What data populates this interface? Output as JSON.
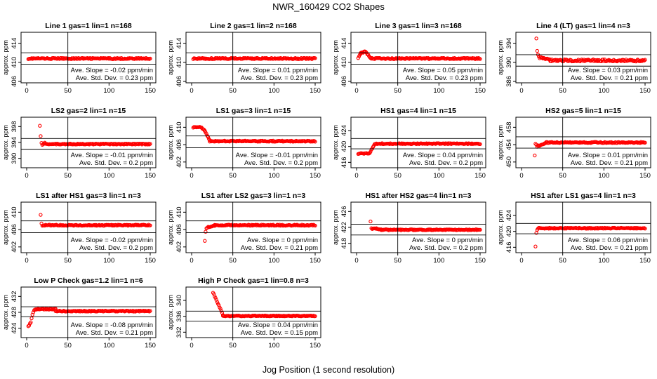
{
  "figure": {
    "title": "NWR_160429  CO2 Shapes",
    "xlabel": "Jog Position (1 second resolution)",
    "ylabel": "approx. ppm",
    "marker_color": "#ff0000"
  },
  "chart_data": [
    {
      "type": "scatter",
      "title": "Line 1 gas=1 lin=1 n=168",
      "xlim": [
        0,
        150
      ],
      "xticks": [
        0,
        50,
        100,
        150
      ],
      "ylim": [
        406,
        416
      ],
      "yticks": [
        406,
        410,
        414
      ],
      "hlines": [
        409.6,
        412.0
      ],
      "vline": 50,
      "slope": "Ave. Slope = -0.02  ppm/min",
      "stddev": "Ave. Std. Dev. = 0.23  ppm",
      "series": [
        {
          "x_start": 2,
          "x_end": 150,
          "segments": [
            {
              "x0": 2,
              "x1": 150,
              "y0": 410.8,
              "y1": 410.8,
              "noise": 0.12
            }
          ]
        }
      ]
    },
    {
      "type": "scatter",
      "title": "Line 2 gas=1 lin=2 n=168",
      "xlim": [
        0,
        150
      ],
      "xticks": [
        0,
        50,
        100,
        150
      ],
      "ylim": [
        406,
        416
      ],
      "yticks": [
        406,
        410,
        414
      ],
      "hlines": [
        409.6,
        412.0
      ],
      "vline": 50,
      "slope": "Ave. Slope = 0.01  ppm/min",
      "stddev": "Ave. Std. Dev. = 0.23  ppm",
      "series": [
        {
          "x_start": 2,
          "x_end": 150,
          "segments": [
            {
              "x0": 2,
              "x1": 150,
              "y0": 410.8,
              "y1": 410.8,
              "noise": 0.12
            }
          ]
        }
      ]
    },
    {
      "type": "scatter",
      "title": "Line 3 gas=1 lin=3 n=168",
      "xlim": [
        0,
        150
      ],
      "xticks": [
        0,
        50,
        100,
        150
      ],
      "ylim": [
        406,
        416
      ],
      "yticks": [
        406,
        410,
        414
      ],
      "hlines": [
        409.6,
        412.0
      ],
      "vline": 50,
      "slope": "Ave. Slope = 0.05  ppm/min",
      "stddev": "Ave. Std. Dev. = 0.23  ppm",
      "series": [
        {
          "x_start": 2,
          "x_end": 150,
          "segments": [
            {
              "x0": 2,
              "x1": 5,
              "y0": 411.0,
              "y1": 411.8,
              "noise": 0.1
            },
            {
              "x0": 5,
              "x1": 11,
              "y0": 411.9,
              "y1": 412.3,
              "noise": 0.1
            },
            {
              "x0": 11,
              "x1": 17,
              "y0": 412.2,
              "y1": 410.9,
              "noise": 0.1
            },
            {
              "x0": 17,
              "x1": 150,
              "y0": 410.8,
              "y1": 410.8,
              "noise": 0.12
            }
          ]
        }
      ]
    },
    {
      "type": "scatter",
      "title": "Line 4 (LT) gas=1 lin=4 n=3",
      "xlim": [
        0,
        150
      ],
      "xticks": [
        0,
        50,
        100,
        150
      ],
      "ylim": [
        386,
        396
      ],
      "yticks": [
        386,
        390,
        394
      ],
      "hlines": [
        389.2,
        391.6
      ],
      "vline": 50,
      "slope": "Ave. Slope = 0.03  ppm/min",
      "stddev": "Ave. Std. Dev. = 0.21  ppm",
      "series": [
        {
          "points": [
            [
              18,
              395.0
            ],
            [
              19,
              392.4
            ],
            [
              20,
              391.6
            ],
            [
              21,
              391.2
            ]
          ],
          "x_start": 22,
          "x_end": 150,
          "segments": [
            {
              "x0": 22,
              "x1": 35,
              "y0": 391.0,
              "y1": 390.5,
              "noise": 0.15
            },
            {
              "x0": 35,
              "x1": 150,
              "y0": 390.4,
              "y1": 390.4,
              "noise": 0.22
            }
          ]
        }
      ]
    },
    {
      "type": "scatter",
      "title": "LS2 gas=2 lin=1 n=15",
      "xlim": [
        0,
        150
      ],
      "xticks": [
        0,
        50,
        100,
        150
      ],
      "ylim": [
        388,
        400
      ],
      "yticks": [
        390,
        394,
        398
      ],
      "hlines": [
        392.3,
        395.0
      ],
      "vline": 50,
      "slope": "Ave. Slope = -0.01  ppm/min",
      "stddev": "Ave. Std. Dev. = 0.2  ppm",
      "series": [
        {
          "points": [
            [
              16,
              398.2
            ],
            [
              17,
              395.6
            ],
            [
              18,
              393.9
            ]
          ],
          "x_start": 19,
          "x_end": 150,
          "segments": [
            {
              "x0": 19,
              "x1": 22,
              "y0": 393.5,
              "y1": 393.9,
              "noise": 0.1
            },
            {
              "x0": 22,
              "x1": 150,
              "y0": 393.6,
              "y1": 393.6,
              "noise": 0.12
            }
          ]
        }
      ]
    },
    {
      "type": "scatter",
      "title": "LS1 gas=3 lin=1 n=15",
      "xlim": [
        0,
        150
      ],
      "xticks": [
        0,
        50,
        100,
        150
      ],
      "ylim": [
        401,
        412
      ],
      "yticks": [
        402,
        406,
        410
      ],
      "hlines": [
        405.3,
        408.0
      ],
      "vline": 50,
      "slope": "Ave. Slope = -0.01  ppm/min",
      "stddev": "Ave. Std. Dev. = 0.2  ppm",
      "series": [
        {
          "x_start": 2,
          "x_end": 150,
          "segments": [
            {
              "x0": 2,
              "x1": 12,
              "y0": 410.0,
              "y1": 410.0,
              "noise": 0.1
            },
            {
              "x0": 12,
              "x1": 16,
              "y0": 409.9,
              "y1": 409.3,
              "noise": 0.1
            },
            {
              "x0": 16,
              "x1": 22,
              "y0": 409.2,
              "y1": 407.0,
              "noise": 0.1
            },
            {
              "x0": 22,
              "x1": 150,
              "y0": 406.8,
              "y1": 406.8,
              "noise": 0.12
            }
          ]
        }
      ]
    },
    {
      "type": "scatter",
      "title": "HS1 gas=4 lin=1 n=15",
      "xlim": [
        0,
        150
      ],
      "xticks": [
        0,
        50,
        100,
        150
      ],
      "ylim": [
        415,
        427
      ],
      "yticks": [
        416,
        420,
        424
      ],
      "hlines": [
        419.4,
        422.0
      ],
      "vline": 50,
      "slope": "Ave. Slope = 0.04  ppm/min",
      "stddev": "Ave. Std. Dev. = 0.2  ppm",
      "series": [
        {
          "x_start": 2,
          "x_end": 150,
          "segments": [
            {
              "x0": 2,
              "x1": 16,
              "y0": 418.2,
              "y1": 418.3,
              "noise": 0.1
            },
            {
              "x0": 16,
              "x1": 22,
              "y0": 418.4,
              "y1": 420.6,
              "noise": 0.1
            },
            {
              "x0": 22,
              "x1": 150,
              "y0": 420.7,
              "y1": 420.7,
              "noise": 0.12
            }
          ]
        }
      ]
    },
    {
      "type": "scatter",
      "title": "HS2 gas=5 lin=1 n=15",
      "xlim": [
        0,
        150
      ],
      "xticks": [
        0,
        50,
        100,
        150
      ],
      "ylim": [
        449,
        460
      ],
      "yticks": [
        450,
        454,
        458
      ],
      "hlines": [
        453.2,
        455.8
      ],
      "vline": 50,
      "slope": "Ave. Slope = 0.01  ppm/min",
      "stddev": "Ave. Std. Dev. = 0.21  ppm",
      "series": [
        {
          "points": [
            [
              16,
              451.5
            ],
            [
              17,
              454.2
            ],
            [
              18,
              454.0
            ]
          ],
          "x_start": 19,
          "x_end": 150,
          "segments": [
            {
              "x0": 19,
              "x1": 30,
              "y0": 453.6,
              "y1": 454.4,
              "noise": 0.1
            },
            {
              "x0": 30,
              "x1": 150,
              "y0": 454.5,
              "y1": 454.5,
              "noise": 0.12
            }
          ]
        }
      ]
    },
    {
      "type": "scatter",
      "title": "LS1 after HS1 gas=3 lin=1 n=3",
      "xlim": [
        0,
        150
      ],
      "xticks": [
        0,
        50,
        100,
        150
      ],
      "ylim": [
        401,
        412
      ],
      "yticks": [
        402,
        406,
        410
      ],
      "hlines": [
        405.3,
        408.0
      ],
      "vline": 50,
      "slope": "Ave. Slope = -0.02  ppm/min",
      "stddev": "Ave. Std. Dev. = 0.2  ppm",
      "series": [
        {
          "points": [
            [
              17,
              409.4
            ],
            [
              18,
              407.4
            ]
          ],
          "x_start": 19,
          "x_end": 150,
          "segments": [
            {
              "x0": 19,
              "x1": 150,
              "y0": 407.0,
              "y1": 407.0,
              "noise": 0.12
            }
          ]
        }
      ]
    },
    {
      "type": "scatter",
      "title": "LS1 after LS2 gas=3 lin=1 n=3",
      "xlim": [
        0,
        150
      ],
      "xticks": [
        0,
        50,
        100,
        150
      ],
      "ylim": [
        401,
        412
      ],
      "yticks": [
        402,
        406,
        410
      ],
      "hlines": [
        405.3,
        408.0
      ],
      "vline": 50,
      "slope": "Ave. Slope = 0  ppm/min",
      "stddev": "Ave. Std. Dev. = 0.21  ppm",
      "series": [
        {
          "points": [
            [
              16,
              403.4
            ],
            [
              17,
              405.5
            ],
            [
              18,
              406.3
            ]
          ],
          "x_start": 19,
          "x_end": 150,
          "segments": [
            {
              "x0": 19,
              "x1": 28,
              "y0": 406.5,
              "y1": 406.9,
              "noise": 0.1
            },
            {
              "x0": 28,
              "x1": 150,
              "y0": 407.0,
              "y1": 407.0,
              "noise": 0.12
            }
          ]
        }
      ]
    },
    {
      "type": "scatter",
      "title": "HS1 after HS2 gas=4 lin=1 n=3",
      "xlim": [
        0,
        150
      ],
      "xticks": [
        0,
        50,
        100,
        150
      ],
      "ylim": [
        416,
        428
      ],
      "yticks": [
        418,
        422,
        426
      ],
      "hlines": [
        420.1,
        422.8
      ],
      "vline": 50,
      "slope": "Ave. Slope = 0  ppm/min",
      "stddev": "Ave. Std. Dev. = 0.2  ppm",
      "series": [
        {
          "points": [
            [
              17,
              423.5
            ],
            [
              18,
              421.8
            ],
            [
              19,
              421.6
            ]
          ],
          "x_start": 20,
          "x_end": 150,
          "segments": [
            {
              "x0": 20,
              "x1": 30,
              "y0": 421.8,
              "y1": 421.5,
              "noise": 0.12
            },
            {
              "x0": 30,
              "x1": 150,
              "y0": 421.4,
              "y1": 421.4,
              "noise": 0.12
            }
          ]
        }
      ]
    },
    {
      "type": "scatter",
      "title": "HS1 after LS1 gas=4 lin=1 n=3",
      "xlim": [
        0,
        150
      ],
      "xticks": [
        0,
        50,
        100,
        150
      ],
      "ylim": [
        415,
        427
      ],
      "yticks": [
        416,
        420,
        424
      ],
      "hlines": [
        419.4,
        422.0
      ],
      "vline": 50,
      "slope": "Ave. Slope = 0.06  ppm/min",
      "stddev": "Ave. Std. Dev. = 0.21  ppm",
      "series": [
        {
          "points": [
            [
              17,
              416.2
            ],
            [
              18,
              419.6
            ],
            [
              19,
              420.4
            ]
          ],
          "x_start": 20,
          "x_end": 150,
          "segments": [
            {
              "x0": 20,
              "x1": 150,
              "y0": 420.8,
              "y1": 420.8,
              "noise": 0.12
            }
          ]
        }
      ]
    },
    {
      "type": "scatter",
      "title": "Low P Check gas=1.2 lin=1 n=6",
      "xlim": [
        0,
        150
      ],
      "xticks": [
        0,
        50,
        100,
        150
      ],
      "ylim": [
        422,
        434
      ],
      "yticks": [
        424,
        428,
        432
      ],
      "hlines": [
        426.9,
        429.4
      ],
      "vline": 50,
      "slope": "Ave. Slope = -0.08  ppm/min",
      "stddev": "Ave. Std. Dev. = 0.21  ppm",
      "series": [
        {
          "points": [
            [
              2,
              424.5
            ],
            [
              3,
              424.7
            ],
            [
              4,
              425.2
            ],
            [
              5,
              425.5
            ],
            [
              6,
              426.5
            ],
            [
              7,
              427.4
            ],
            [
              8,
              428.0
            ],
            [
              9,
              428.5
            ]
          ],
          "x_start": 10,
          "x_end": 150,
          "segments": [
            {
              "x0": 10,
              "x1": 35,
              "y0": 428.8,
              "y1": 428.8,
              "noise": 0.12
            },
            {
              "x0": 35,
              "x1": 150,
              "y0": 428.3,
              "y1": 428.3,
              "noise": 0.12
            }
          ]
        }
      ]
    },
    {
      "type": "scatter",
      "title": "High P Check gas=1 lin=0.8 n=3",
      "xlim": [
        0,
        150
      ],
      "xticks": [
        0,
        50,
        100,
        150
      ],
      "ylim": [
        331,
        343
      ],
      "yticks": [
        332,
        336,
        340
      ],
      "hlines": [
        334.8,
        337.3
      ],
      "vline": 50,
      "slope": "Ave. Slope = 0.04  ppm/min",
      "stddev": "Ave. Std. Dev. = 0.15  ppm",
      "series": [
        {
          "x_start": 26,
          "x_end": 150,
          "segments": [
            {
              "x0": 26,
              "x1": 38,
              "y0": 342.0,
              "y1": 336.4,
              "noise": 0.1
            },
            {
              "x0": 38,
              "x1": 150,
              "y0": 336.1,
              "y1": 336.1,
              "noise": 0.1
            }
          ]
        }
      ]
    }
  ]
}
